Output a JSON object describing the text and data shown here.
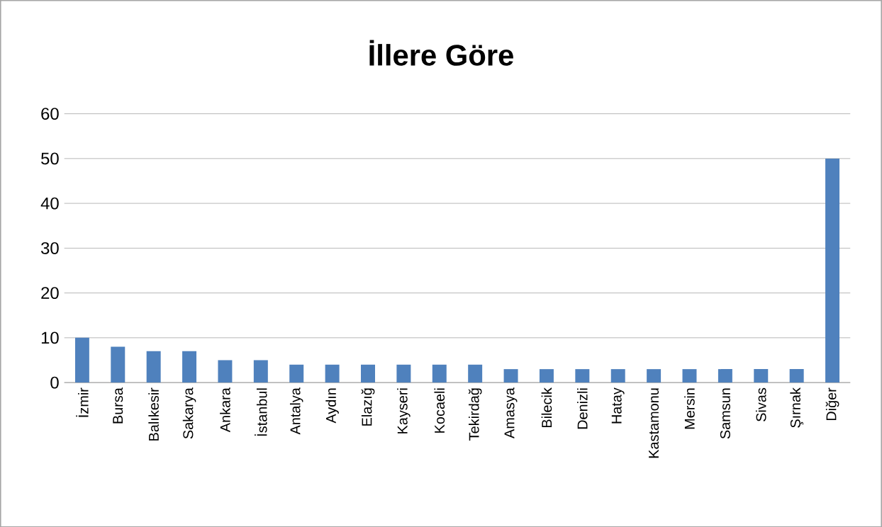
{
  "chart_data": {
    "type": "bar",
    "title": "İllere Göre",
    "categories": [
      "İzmir",
      "Bursa",
      "Balıkesir",
      "Sakarya",
      "Ankara",
      "İstanbul",
      "Antalya",
      "Aydın",
      "Elazığ",
      "Kayseri",
      "Kocaeli",
      "Tekirdağ",
      "Amasya",
      "Bilecik",
      "Denizli",
      "Hatay",
      "Kastamonu",
      "Mersin",
      "Samsun",
      "Sivas",
      "Şırnak",
      "Diğer"
    ],
    "values": [
      10,
      8,
      7,
      7,
      5,
      5,
      4,
      4,
      4,
      4,
      4,
      4,
      3,
      3,
      3,
      3,
      3,
      3,
      3,
      3,
      3,
      50
    ],
    "color": "#4f81bd",
    "ylim": [
      0,
      60
    ],
    "yticks": [
      0,
      10,
      20,
      30,
      40,
      50,
      60
    ],
    "grid": "y"
  }
}
